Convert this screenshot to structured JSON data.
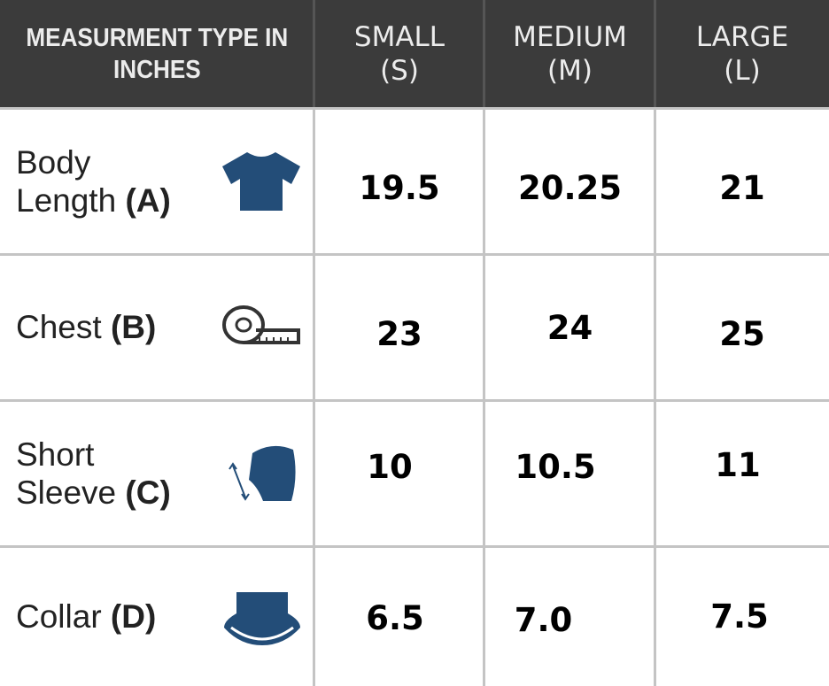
{
  "table": {
    "header": [
      [
        "MEASURMENT TYPE IN",
        "INCHES"
      ],
      [
        "SMALL",
        "(S)"
      ],
      [
        "MEDIUM",
        "(M)"
      ],
      [
        "LARGE",
        "(L)"
      ]
    ],
    "rows": [
      {
        "name": [
          "Body",
          "Length"
        ],
        "code": "(A)",
        "values": [
          "19.5",
          "20.25",
          "21"
        ]
      },
      {
        "name": [
          "Chest"
        ],
        "code": "(B)",
        "values": [
          "23",
          "24",
          "25"
        ]
      },
      {
        "name": [
          "Short",
          "Sleeve"
        ],
        "code": "(C)",
        "values": [
          "10",
          "10.5",
          "11"
        ]
      },
      {
        "name": [
          "Collar"
        ],
        "code": "(D)",
        "values": [
          "6.5",
          "7.0",
          "7.5"
        ]
      }
    ]
  }
}
